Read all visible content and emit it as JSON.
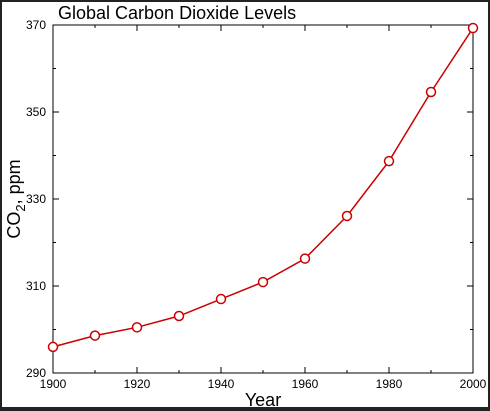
{
  "chart_data": {
    "type": "line",
    "title": "Global Carbon Dioxide Levels",
    "xlabel": "Year",
    "ylabel_main": "CO",
    "ylabel_sub": "2",
    "ylabel_rest": ", ppm",
    "xlim": [
      1900,
      2000
    ],
    "ylim": [
      290,
      370
    ],
    "x_ticks": [
      1900,
      1920,
      1940,
      1960,
      1980,
      2000
    ],
    "y_ticks": [
      290,
      310,
      330,
      350,
      370
    ],
    "x": [
      1900,
      1910,
      1920,
      1930,
      1940,
      1950,
      1960,
      1970,
      1980,
      1990,
      2000
    ],
    "series": [
      {
        "values": [
          296.0,
          298.6,
          300.5,
          303.1,
          307.0,
          310.9,
          316.3,
          326.1,
          338.7,
          354.6,
          369.3
        ],
        "color": "#cc0000"
      }
    ],
    "grid": false
  }
}
